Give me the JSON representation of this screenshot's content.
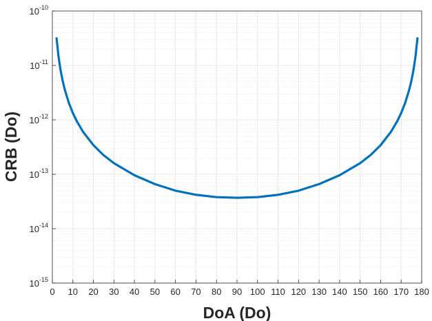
{
  "chart_data": {
    "type": "line",
    "title": "",
    "xlabel": "DoA (Do)",
    "ylabel": "CRB (Do)",
    "xscale": "linear",
    "yscale": "log",
    "xlim": [
      0,
      180
    ],
    "ylim": [
      1e-15,
      1e-10
    ],
    "grid": true,
    "minor_grid": true,
    "x_ticks": [
      0,
      10,
      20,
      30,
      40,
      50,
      60,
      70,
      80,
      90,
      100,
      110,
      120,
      130,
      140,
      150,
      160,
      170,
      180
    ],
    "x_tick_labels": [
      "0",
      "10",
      "20",
      "30",
      "40",
      "50",
      "60",
      "70",
      "80",
      "90",
      "100",
      "110",
      "120",
      "130",
      "140",
      "150",
      "160",
      "170",
      "180"
    ],
    "y_ticks": [
      1e-15,
      1e-14,
      1e-13,
      1e-12,
      1e-11,
      1e-10
    ],
    "y_tick_labels": [
      {
        "base": "10",
        "exp": "-15"
      },
      {
        "base": "10",
        "exp": "-14"
      },
      {
        "base": "10",
        "exp": "-13"
      },
      {
        "base": "10",
        "exp": "-12"
      },
      {
        "base": "10",
        "exp": "-11"
      },
      {
        "base": "10",
        "exp": "-10"
      }
    ],
    "series": [
      {
        "name": "CRB",
        "color": "#0072bd",
        "x": [
          2,
          3,
          4,
          5,
          6,
          8,
          10,
          12,
          15,
          20,
          25,
          30,
          40,
          50,
          60,
          70,
          80,
          90,
          100,
          110,
          120,
          130,
          140,
          150,
          155,
          160,
          165,
          168,
          170,
          172,
          174,
          175,
          176,
          177,
          178
        ],
        "y": [
          3.28e-11,
          1.46e-11,
          8.2e-12,
          5.26e-12,
          3.66e-12,
          2.07e-12,
          1.33e-12,
          9.3e-13,
          6e-13,
          3.43e-13,
          2.24e-13,
          1.6e-13,
          9.6e-14,
          6.6e-14,
          5e-14,
          4.2e-14,
          3.8e-14,
          3.7e-14,
          3.8e-14,
          4.2e-14,
          5e-14,
          6.6e-14,
          9.6e-14,
          1.6e-13,
          2.24e-13,
          3.43e-13,
          6e-13,
          9.3e-13,
          1.33e-12,
          2.07e-12,
          3.66e-12,
          5.26e-12,
          8.2e-12,
          1.46e-11,
          3.28e-11
        ]
      }
    ]
  }
}
